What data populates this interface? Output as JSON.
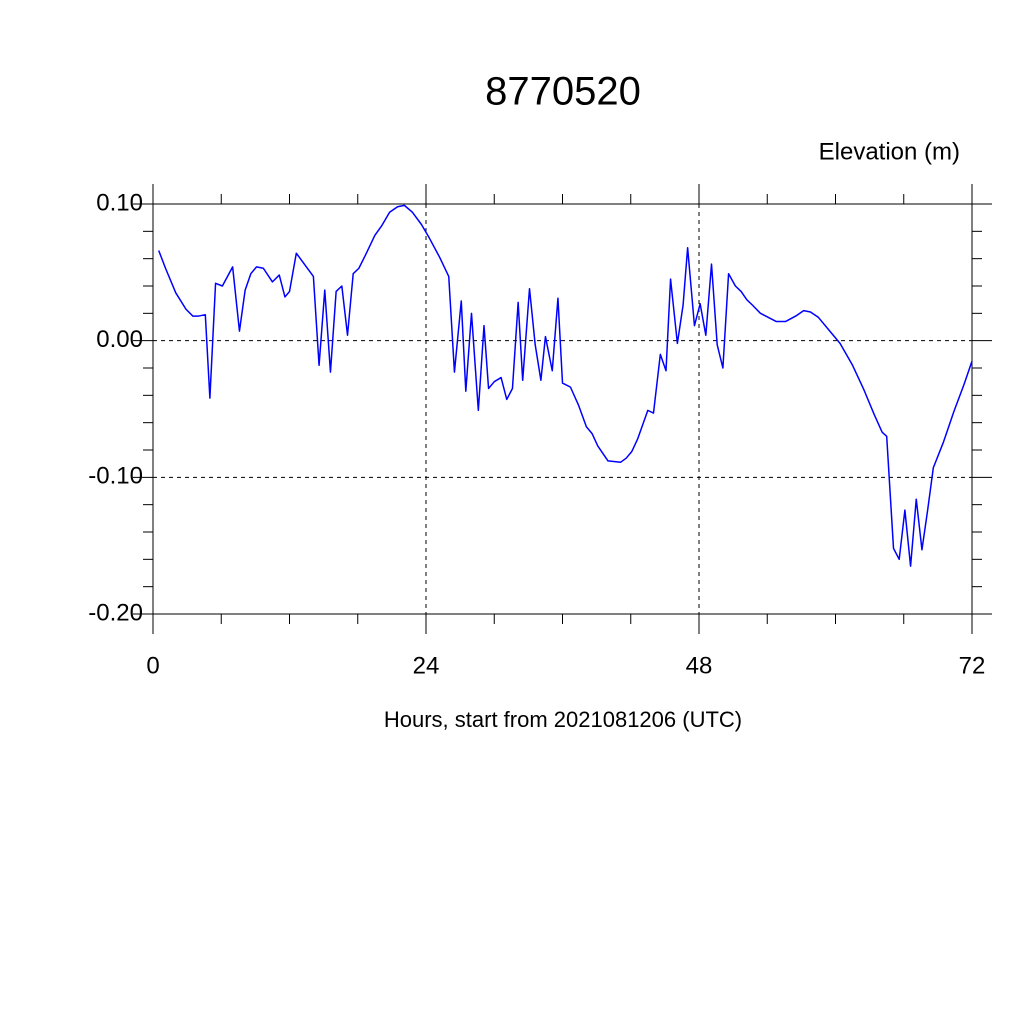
{
  "chart_data": {
    "type": "line",
    "title": "8770520",
    "y_axis_label": "Elevation (m)",
    "x_axis_label": "Hours, start from 2021081206 (UTC)",
    "xlim": [
      0,
      72
    ],
    "ylim": [
      -0.2,
      0.1
    ],
    "xticks": [
      0,
      24,
      48,
      72
    ],
    "yticks": [
      {
        "value": 0.1,
        "label": "0.10"
      },
      {
        "value": 0,
        "label": "0.00"
      },
      {
        "value": -0.1,
        "label": "-0.10"
      },
      {
        "value": -0.2,
        "label": "-0.20"
      }
    ],
    "xticks_minor": [
      6,
      12,
      18,
      30,
      36,
      42,
      54,
      60,
      66
    ],
    "yticks_minor": [
      0.08,
      0.06,
      0.04,
      0.02,
      -0.02,
      -0.04,
      -0.06,
      -0.08,
      -0.12,
      -0.14,
      -0.16,
      -0.18
    ],
    "grid": true,
    "grid_style": "dashed",
    "series": [
      {
        "color": "#0000ff",
        "x": [
          0.5,
          1.1,
          2.0,
          2.9,
          3.5,
          4.0,
          4.6,
          5.0,
          5.5,
          6.1,
          7.0,
          7.6,
          8.1,
          8.6,
          9.1,
          9.7,
          10.5,
          11.1,
          11.6,
          12.0,
          12.6,
          14.1,
          14.6,
          15.1,
          15.6,
          16.1,
          16.6,
          17.1,
          17.6,
          18.1,
          18.7,
          19.5,
          20.1,
          20.8,
          21.5,
          22.1,
          22.8,
          23.6,
          24.3,
          25.2,
          26.0,
          26.5,
          27.1,
          27.5,
          28.0,
          28.6,
          29.1,
          29.5,
          30.0,
          30.6,
          31.1,
          31.6,
          32.1,
          32.5,
          33.1,
          33.6,
          34.1,
          34.5,
          35.1,
          35.6,
          36.0,
          36.7,
          37.4,
          38.1,
          38.6,
          39.1,
          40.0,
          41.1,
          41.6,
          42.1,
          42.6,
          43.5,
          44.0,
          44.6,
          45.1,
          45.5,
          46.1,
          46.6,
          47.0,
          47.6,
          48.1,
          48.6,
          49.1,
          49.6,
          50.1,
          50.6,
          51.2,
          51.7,
          52.2,
          52.7,
          53.4,
          54.1,
          54.8,
          55.6,
          56.5,
          57.2,
          57.8,
          58.5,
          59.5,
          60.4,
          61.5,
          62.5,
          63.4,
          64.1,
          64.5,
          65.1,
          65.6,
          66.1,
          66.6,
          67.1,
          67.6,
          68.1,
          68.6,
          69.5,
          70.4,
          71.3,
          72.0
        ],
        "values": [
          0.066,
          0.053,
          0.035,
          0.023,
          0.018,
          0.018,
          0.019,
          -0.042,
          0.042,
          0.04,
          0.054,
          0.007,
          0.037,
          0.049,
          0.054,
          0.053,
          0.043,
          0.048,
          0.032,
          0.036,
          0.064,
          0.047,
          -0.018,
          0.037,
          -0.023,
          0.036,
          0.04,
          0.004,
          0.049,
          0.053,
          0.063,
          0.077,
          0.084,
          0.094,
          0.098,
          0.099,
          0.094,
          0.085,
          0.075,
          0.061,
          0.047,
          -0.023,
          0.029,
          -0.037,
          0.02,
          -0.051,
          0.011,
          -0.035,
          -0.03,
          -0.027,
          -0.043,
          -0.035,
          0.028,
          -0.029,
          0.038,
          -0.003,
          -0.029,
          0.003,
          -0.022,
          0.031,
          -0.031,
          -0.034,
          -0.047,
          -0.063,
          -0.068,
          -0.077,
          -0.088,
          -0.089,
          -0.086,
          -0.081,
          -0.072,
          -0.051,
          -0.053,
          -0.01,
          -0.022,
          0.045,
          -0.002,
          0.026,
          0.068,
          0.011,
          0.027,
          0.004,
          0.056,
          -0.003,
          -0.02,
          0.049,
          0.04,
          0.036,
          0.03,
          0.026,
          0.02,
          0.017,
          0.014,
          0.014,
          0.018,
          0.022,
          0.021,
          0.017,
          0.007,
          -0.002,
          -0.018,
          -0.036,
          -0.054,
          -0.067,
          -0.07,
          -0.152,
          -0.16,
          -0.124,
          -0.165,
          -0.116,
          -0.153,
          -0.124,
          -0.093,
          -0.074,
          -0.052,
          -0.032,
          -0.015
        ]
      }
    ]
  }
}
